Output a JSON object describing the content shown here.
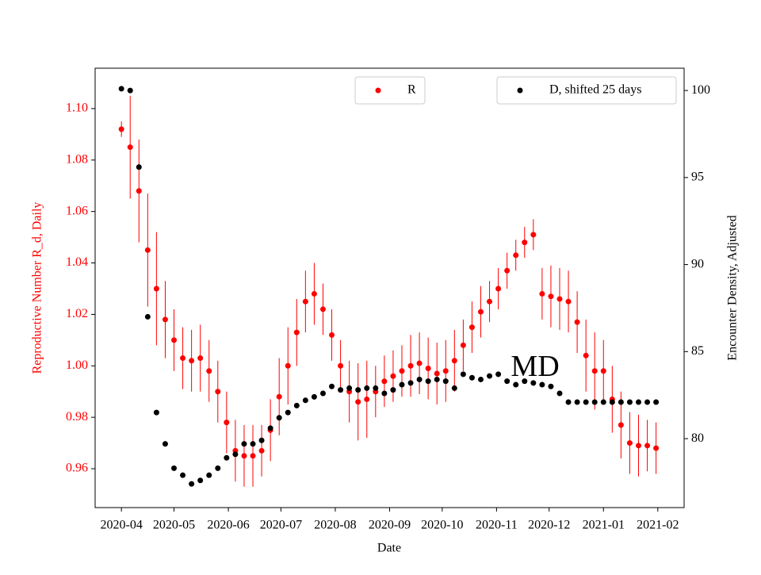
{
  "chart_data": {
    "type": "scatter",
    "xlabel": "Date",
    "ylabel": "Reproductive Number R_d, Daily",
    "y2label": "Encounter Density, Adjusted",
    "annotation": {
      "text": "MD",
      "x": "2020-11-23",
      "y": 0.9988
    },
    "x": [
      "2020-04-01",
      "2020-04-06",
      "2020-04-11",
      "2020-04-16",
      "2020-04-21",
      "2020-04-26",
      "2020-05-01",
      "2020-05-06",
      "2020-05-11",
      "2020-05-16",
      "2020-05-21",
      "2020-05-26",
      "2020-05-31",
      "2020-06-05",
      "2020-06-10",
      "2020-06-15",
      "2020-06-20",
      "2020-06-25",
      "2020-06-30",
      "2020-07-05",
      "2020-07-10",
      "2020-07-15",
      "2020-07-20",
      "2020-07-25",
      "2020-07-30",
      "2020-08-04",
      "2020-08-09",
      "2020-08-14",
      "2020-08-19",
      "2020-08-24",
      "2020-08-29",
      "2020-09-03",
      "2020-09-08",
      "2020-09-13",
      "2020-09-18",
      "2020-09-23",
      "2020-09-28",
      "2020-10-03",
      "2020-10-08",
      "2020-10-13",
      "2020-10-18",
      "2020-10-23",
      "2020-10-28",
      "2020-11-02",
      "2020-11-07",
      "2020-11-12",
      "2020-11-17",
      "2020-11-22",
      "2020-11-27",
      "2020-12-02",
      "2020-12-07",
      "2020-12-12",
      "2020-12-17",
      "2020-12-22",
      "2020-12-27",
      "2021-01-01",
      "2021-01-06",
      "2021-01-11",
      "2021-01-16",
      "2021-01-21",
      "2021-01-26",
      "2021-01-31"
    ],
    "series": [
      {
        "name": "R",
        "color": "#ff0000",
        "axis": "y",
        "values": [
          1.092,
          1.085,
          1.068,
          1.045,
          1.03,
          1.018,
          1.01,
          1.003,
          1.002,
          1.003,
          0.998,
          0.99,
          0.978,
          0.967,
          0.965,
          0.965,
          0.967,
          0.975,
          0.988,
          1.0,
          1.013,
          1.025,
          1.028,
          1.022,
          1.012,
          1.0,
          0.99,
          0.986,
          0.987,
          0.99,
          0.994,
          0.996,
          0.998,
          1.0,
          1.001,
          0.999,
          0.997,
          0.998,
          1.002,
          1.008,
          1.015,
          1.021,
          1.025,
          1.03,
          1.037,
          1.043,
          1.048,
          1.051,
          1.028,
          1.027,
          1.026,
          1.025,
          1.017,
          1.004,
          0.998,
          0.998,
          0.987,
          0.977,
          0.97,
          0.969,
          0.969,
          0.968
        ],
        "errors": [
          0.003,
          0.02,
          0.02,
          0.022,
          0.022,
          0.015,
          0.012,
          0.012,
          0.012,
          0.013,
          0.012,
          0.012,
          0.012,
          0.012,
          0.012,
          0.012,
          0.01,
          0.012,
          0.015,
          0.015,
          0.013,
          0.012,
          0.012,
          0.01,
          0.01,
          0.01,
          0.012,
          0.015,
          0.015,
          0.01,
          0.01,
          0.01,
          0.01,
          0.012,
          0.012,
          0.012,
          0.012,
          0.012,
          0.012,
          0.01,
          0.01,
          0.01,
          0.008,
          0.008,
          0.007,
          0.006,
          0.006,
          0.006,
          0.01,
          0.012,
          0.012,
          0.012,
          0.012,
          0.014,
          0.015,
          0.012,
          0.013,
          0.013,
          0.012,
          0.012,
          0.01,
          0.01
        ]
      },
      {
        "name": "D, shifted 25 days",
        "color": "#000000",
        "axis": "y2",
        "values": [
          100.1,
          100.0,
          95.6,
          87.0,
          81.5,
          79.7,
          78.3,
          77.9,
          77.4,
          77.6,
          77.9,
          78.3,
          78.9,
          79.1,
          79.7,
          79.7,
          79.9,
          80.6,
          81.2,
          81.5,
          81.9,
          82.2,
          82.4,
          82.6,
          83.0,
          82.8,
          82.9,
          82.8,
          82.9,
          82.9,
          82.6,
          82.8,
          83.1,
          83.2,
          83.4,
          83.3,
          83.4,
          83.3,
          82.9,
          83.7,
          83.5,
          83.4,
          83.6,
          83.7,
          83.3,
          83.1,
          83.3,
          83.2,
          83.1,
          83.0,
          82.6,
          82.1,
          82.1,
          82.1,
          82.1,
          82.1,
          82.1,
          82.1,
          82.1,
          82.1,
          82.1,
          82.1
        ]
      }
    ],
    "xlim": [
      "2020-03-17",
      "2021-02-16"
    ],
    "xticks": [
      {
        "value": "2020-04-01",
        "label": "2020-04"
      },
      {
        "value": "2020-05-01",
        "label": "2020-05"
      },
      {
        "value": "2020-06-01",
        "label": "2020-06"
      },
      {
        "value": "2020-07-01",
        "label": "2020-07"
      },
      {
        "value": "2020-08-01",
        "label": "2020-08"
      },
      {
        "value": "2020-09-01",
        "label": "2020-09"
      },
      {
        "value": "2020-10-01",
        "label": "2020-10"
      },
      {
        "value": "2020-11-01",
        "label": "2020-11"
      },
      {
        "value": "2020-12-01",
        "label": "2020-12"
      },
      {
        "value": "2021-01-01",
        "label": "2021-01"
      },
      {
        "value": "2021-02-01",
        "label": "2021-02"
      }
    ],
    "ylim": [
      0.9449,
      1.1157
    ],
    "yticks": [
      0.96,
      0.98,
      {
        "value": 1,
        "label": "1.00"
      },
      1.02,
      1.04,
      1.06,
      1.08,
      {
        "value": 1.1,
        "label": "1.10"
      }
    ],
    "y2lim": [
      76.04,
      101.28
    ],
    "y2ticks": [
      80,
      85,
      90,
      95,
      100
    ]
  }
}
